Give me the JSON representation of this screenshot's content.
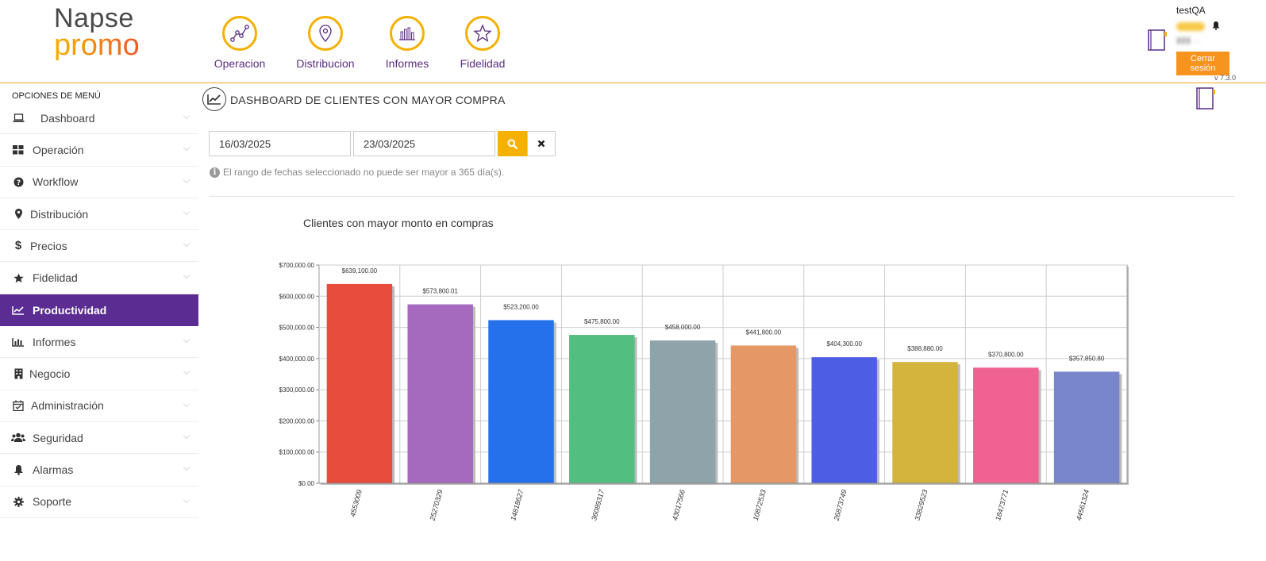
{
  "logo": {
    "line1": "Napse",
    "line2": "promo"
  },
  "topnav": [
    {
      "label": "Operacion",
      "icon": "operation-icon"
    },
    {
      "label": "Distribucion",
      "icon": "map-pin-icon"
    },
    {
      "label": "Informes",
      "icon": "bar-chart-icon"
    },
    {
      "label": "Fidelidad",
      "icon": "star-icon"
    }
  ],
  "user": {
    "name": "testQA",
    "logout_label": "Cerrar sesión",
    "version": "v 7.3.0"
  },
  "sidebar": {
    "title": "OPCIONES DE MENÚ",
    "items": [
      {
        "label": "Dashboard",
        "icon": "laptop-icon"
      },
      {
        "label": "Operación",
        "icon": "grid-icon"
      },
      {
        "label": "Workflow",
        "icon": "question-circle-icon"
      },
      {
        "label": "Distribución",
        "icon": "map-marker-icon"
      },
      {
        "label": "Precios",
        "icon": "dollar-icon"
      },
      {
        "label": "Fidelidad",
        "icon": "star-icon"
      },
      {
        "label": "Productividad",
        "icon": "line-chart-icon",
        "active": true
      },
      {
        "label": "Informes",
        "icon": "bar-chart-icon"
      },
      {
        "label": "Negocio",
        "icon": "building-icon"
      },
      {
        "label": "Administración",
        "icon": "calendar-check-icon"
      },
      {
        "label": "Seguridad",
        "icon": "users-icon"
      },
      {
        "label": "Alarmas",
        "icon": "bell-icon"
      },
      {
        "label": "Soporte",
        "icon": "gear-icon"
      }
    ]
  },
  "main": {
    "title": "DASHBOARD DE CLIENTES CON MAYOR COMPRA",
    "date_from": "16/03/2025",
    "date_to": "23/03/2025",
    "hint": "El rango de fechas seleccionado no puede ser mayor a 365 día(s)."
  },
  "colors": {
    "accent": "#f5b000",
    "primary": "#5b2c91",
    "logout": "#f7941d"
  },
  "chart_data": {
    "type": "bar",
    "title": "Clientes con mayor monto en compras",
    "categories": [
      "4553009",
      "25270329",
      "14818627",
      "36089317",
      "43017566",
      "10872533",
      "26873749",
      "33829523",
      "18473771",
      "44561324"
    ],
    "values": [
      639100.0,
      573800.01,
      523200.0,
      475800.0,
      458000.0,
      441800.0,
      404300.0,
      388880.0,
      370800.0,
      357850.8
    ],
    "labels": [
      "$639,100.00",
      "$573,800.01",
      "$523,200.00",
      "$475,800.00",
      "$458,000.00",
      "$441,800.00",
      "$404,300.00",
      "$388,880.00",
      "$370,800.00",
      "$357,850.80"
    ],
    "colors": [
      "#e74c3c",
      "#a569bd",
      "#2471eb",
      "#52be80",
      "#8fa3ab",
      "#e59866",
      "#4e5ee4",
      "#d4b43c",
      "#f06292",
      "#7986cb"
    ],
    "yticks": [
      "$0.00",
      "$100,000.00",
      "$200,000.00",
      "$300,000.00",
      "$400,000.00",
      "$500,000.00",
      "$600,000.00",
      "$700,000.00"
    ],
    "ylim": [
      0,
      700000
    ],
    "grid": true
  }
}
